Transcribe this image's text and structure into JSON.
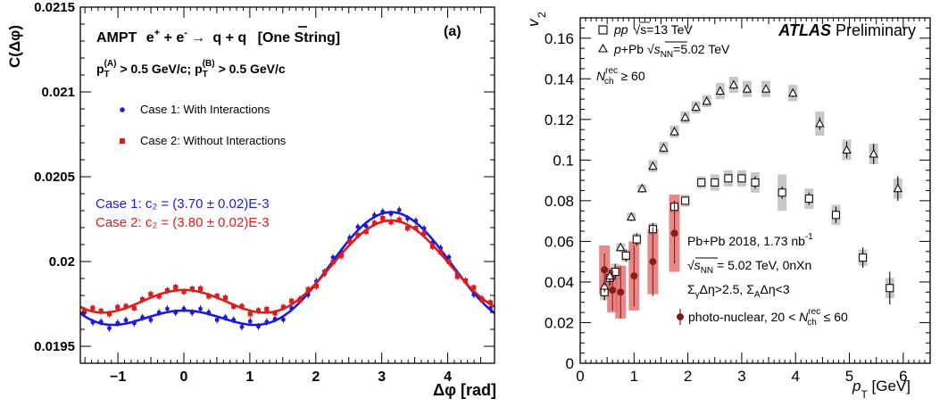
{
  "chart_data": [
    {
      "type": "line",
      "panel_label": "(a)",
      "title": "AMPT e⁺ + e⁻ → q + q̄ [One String]",
      "title_parts": {
        "model": "AMPT",
        "lhs": "e",
        "arrow": "→",
        "rhs": "q + q",
        "tag": "[One String]"
      },
      "subtitle_parts": {
        "p": "p",
        "a_sup": "(A)",
        "a_rest": " > 0.5 GeV/c; ",
        "b_sup": "(B)",
        "b_rest": " > 0.5 GeV/c"
      },
      "xlabel": "Δφ [rad]",
      "ylabel": "C(Δφ)",
      "xlim": [
        -1.57,
        4.71
      ],
      "ylim": [
        0.0194,
        0.0215
      ],
      "x_ticks": [
        -1,
        0,
        1,
        2,
        3,
        4
      ],
      "x_tick_labels": [
        "−1",
        "0",
        "1",
        "2",
        "3",
        "4"
      ],
      "y_ticks": [
        0.0195,
        0.02,
        0.0205,
        0.021,
        0.0215
      ],
      "y_tick_labels": [
        "0.0195",
        "0.02",
        "0.0205",
        "0.021",
        "0.0215"
      ],
      "grid": false,
      "legend_position": "upper-left",
      "annotations": [
        "Case 1: c₂ = (3.70 ± 0.02)E-3",
        "Case 2: c₂ = (3.80 ± 0.02)E-3"
      ],
      "annotation_colors": [
        "#1a1adf",
        "#e01b1b"
      ],
      "series": [
        {
          "name": "Case 1: With Interactions",
          "color": "#1a1adf",
          "marker": "circle",
          "base": 0.019848,
          "a1": -0.000145,
          "a2": 7.65e-05,
          "noise": [
            2e-05,
            -1e-05,
            1e-05,
            -2e-05,
            1e-05,
            2e-05,
            -1e-05,
            1e-05,
            -2e-05,
            1e-05,
            2e-05,
            -1e-05,
            1e-05,
            -1e-05,
            2e-05,
            1e-05,
            -2e-05,
            1e-05,
            1e-05,
            -2e-05,
            2e-05,
            -1e-05,
            1e-05,
            1e-05,
            -2e-05,
            1e-05,
            2e-05,
            -1e-05,
            1e-05,
            -1e-05,
            2e-05,
            -1e-05,
            1e-05,
            2e-05,
            -2e-05,
            1e-05,
            1e-05,
            -1e-05,
            2e-05,
            -1e-05,
            1e-05,
            1e-05,
            -2e-05,
            1e-05,
            2e-05,
            -1e-05,
            1e-05,
            -1e-05,
            2e-05,
            1e-05
          ]
        },
        {
          "name": "Case 2: Without Interactions",
          "color": "#e01b1b",
          "marker": "square",
          "base": 0.019885,
          "a1": -0.0001025,
          "a2": 7.6e-05,
          "noise": [
            -1e-05,
            2e-05,
            1e-05,
            -1e-05,
            2e-05,
            1e-05,
            -2e-05,
            1e-05,
            2e-05,
            -1e-05,
            1e-05,
            2e-05,
            -1e-05,
            1e-05,
            2e-05,
            -1e-05,
            1e-05,
            2e-05,
            -1e-05,
            1e-05,
            -2e-05,
            1e-05,
            2e-05,
            -1e-05,
            1e-05,
            2e-05,
            -1e-05,
            1e-05,
            -2e-05,
            1e-05,
            1e-05,
            -1e-05,
            2e-05,
            1e-05,
            -1e-05,
            1e-05,
            2e-05,
            -1e-05,
            1e-05,
            -2e-05,
            1e-05,
            2e-05,
            -1e-05,
            1e-05,
            1e-05,
            -2e-05,
            1e-05,
            2e-05,
            -1e-05,
            1e-05
          ]
        }
      ]
    },
    {
      "type": "scatter",
      "xlabel_p": "p",
      "xlabel_sub": "T",
      "xlabel_unit": " [GeV]",
      "ylabel_v": "v",
      "ylabel_sub": "2",
      "xlim": [
        0,
        6.5
      ],
      "ylim": [
        0,
        0.17
      ],
      "x_ticks": [
        0,
        1,
        2,
        3,
        4,
        5,
        6
      ],
      "y_ticks": [
        0,
        0.02,
        0.04,
        0.06,
        0.08,
        0.1,
        0.12,
        0.14,
        0.16
      ],
      "y_tick_labels": [
        "0",
        "0.02",
        "0.04",
        "0.06",
        "0.08",
        "0.1",
        "0.12",
        "0.14",
        "0.16"
      ],
      "grid": false,
      "header": {
        "atlas": "ATLAS",
        "prelim": " Preliminary"
      },
      "legend_top": {
        "pp_name": "pp",
        "pp_energy": "s=13 TeV",
        "ppb_name": "p",
        "ppb_rest": "+Pb ",
        "ppb_s": "s",
        "ppb_sub": "NN",
        "ppb_energy": "=5.02 TeV",
        "nch_n": "N",
        "nch_sup": "rec",
        "nch_sub": "ch",
        "nch_rest": " ≥ 60"
      },
      "pbpb_info": {
        "line1": "Pb+Pb 2018, 1.73 nb",
        "line1_sup": "-1",
        "line2_s": "s",
        "line2_sub": "NN",
        "line2_rest": " = 5.02 TeV, 0nXn",
        "line3": "Σ",
        "line3_sub1": "γ",
        "line3_mid": "Δη>2.5, Σ",
        "line3_sub2": "A",
        "line3_end": "Δη<3"
      },
      "legend_bottom": {
        "label": "photo-nuclear, 20 < ",
        "n": "N",
        "sup": "rec",
        "sub": "ch",
        "end": " ≤ 60"
      },
      "series": [
        {
          "name": "pp √s=13 TeV",
          "marker": "open-square",
          "color": "#000000",
          "points": [
            {
              "x": 0.45,
              "y": 0.035,
              "err": 0.004,
              "sys": 0.004
            },
            {
              "x": 0.55,
              "y": 0.042,
              "err": 0.004,
              "sys": 0.004
            },
            {
              "x": 0.65,
              "y": 0.045,
              "err": 0.004,
              "sys": 0.004
            },
            {
              "x": 0.85,
              "y": 0.053,
              "err": 0.003,
              "sys": 0.003
            },
            {
              "x": 1.05,
              "y": 0.061,
              "err": 0.003,
              "sys": 0.003
            },
            {
              "x": 1.35,
              "y": 0.066,
              "err": 0.003,
              "sys": 0.003
            },
            {
              "x": 1.75,
              "y": 0.077,
              "err": 0.003,
              "sys": 0.003
            },
            {
              "x": 1.95,
              "y": 0.08,
              "err": 0.002,
              "sys": 0.003
            },
            {
              "x": 2.25,
              "y": 0.089,
              "err": 0.002,
              "sys": 0.003
            },
            {
              "x": 2.5,
              "y": 0.089,
              "err": 0.002,
              "sys": 0.004
            },
            {
              "x": 2.75,
              "y": 0.091,
              "err": 0.002,
              "sys": 0.004
            },
            {
              "x": 3.0,
              "y": 0.091,
              "err": 0.002,
              "sys": 0.004
            },
            {
              "x": 3.25,
              "y": 0.089,
              "err": 0.003,
              "sys": 0.005
            },
            {
              "x": 3.75,
              "y": 0.084,
              "err": 0.003,
              "sys": 0.009
            },
            {
              "x": 4.25,
              "y": 0.081,
              "err": 0.003,
              "sys": 0.005
            },
            {
              "x": 4.75,
              "y": 0.073,
              "err": 0.004,
              "sys": 0.005
            },
            {
              "x": 5.25,
              "y": 0.052,
              "err": 0.005,
              "sys": 0.004
            },
            {
              "x": 5.75,
              "y": 0.037,
              "err": 0.008,
              "sys": 0.005
            }
          ]
        },
        {
          "name": "p+Pb √sNN=5.02 TeV",
          "marker": "open-triangle",
          "color": "#000000",
          "points": [
            {
              "x": 0.45,
              "y": 0.038,
              "err": 0.003,
              "sys": 0.003
            },
            {
              "x": 0.55,
              "y": 0.043,
              "err": 0.003,
              "sys": 0.003
            },
            {
              "x": 0.75,
              "y": 0.057,
              "err": 0.002,
              "sys": 0.002
            },
            {
              "x": 0.95,
              "y": 0.072,
              "err": 0.002,
              "sys": 0.002
            },
            {
              "x": 1.15,
              "y": 0.086,
              "err": 0.002,
              "sys": 0.002
            },
            {
              "x": 1.35,
              "y": 0.097,
              "err": 0.002,
              "sys": 0.003
            },
            {
              "x": 1.55,
              "y": 0.106,
              "err": 0.002,
              "sys": 0.003
            },
            {
              "x": 1.75,
              "y": 0.114,
              "err": 0.002,
              "sys": 0.003
            },
            {
              "x": 1.95,
              "y": 0.121,
              "err": 0.002,
              "sys": 0.003
            },
            {
              "x": 2.15,
              "y": 0.126,
              "err": 0.002,
              "sys": 0.003
            },
            {
              "x": 2.35,
              "y": 0.129,
              "err": 0.002,
              "sys": 0.003
            },
            {
              "x": 2.6,
              "y": 0.134,
              "err": 0.002,
              "sys": 0.004
            },
            {
              "x": 2.85,
              "y": 0.137,
              "err": 0.002,
              "sys": 0.004
            },
            {
              "x": 3.1,
              "y": 0.135,
              "err": 0.002,
              "sys": 0.004
            },
            {
              "x": 3.45,
              "y": 0.135,
              "err": 0.002,
              "sys": 0.004
            },
            {
              "x": 3.95,
              "y": 0.133,
              "err": 0.002,
              "sys": 0.004
            },
            {
              "x": 4.45,
              "y": 0.118,
              "err": 0.003,
              "sys": 0.006
            },
            {
              "x": 4.95,
              "y": 0.105,
              "err": 0.004,
              "sys": 0.005
            },
            {
              "x": 5.45,
              "y": 0.103,
              "err": 0.005,
              "sys": 0.005
            },
            {
              "x": 5.9,
              "y": 0.086,
              "err": 0.006,
              "sys": 0.005
            }
          ]
        },
        {
          "name": "photo-nuclear, 20 < Nch^rec ≤ 60",
          "marker": "filled-circle",
          "color": "#8b1a1a",
          "sys_color": "#e26a6a",
          "points": [
            {
              "x": 0.45,
              "y": 0.046,
              "err": 0.008,
              "sys": 0.012
            },
            {
              "x": 0.6,
              "y": 0.036,
              "err": 0.01,
              "sys": 0.011
            },
            {
              "x": 0.75,
              "y": 0.035,
              "err": 0.013,
              "sys": 0.013
            },
            {
              "x": 1.0,
              "y": 0.043,
              "err": 0.015,
              "sys": 0.017
            },
            {
              "x": 1.35,
              "y": 0.05,
              "err": 0.017,
              "sys": 0.016
            },
            {
              "x": 1.75,
              "y": 0.064,
              "err": 0.015,
              "sys": 0.019
            }
          ]
        }
      ]
    }
  ]
}
